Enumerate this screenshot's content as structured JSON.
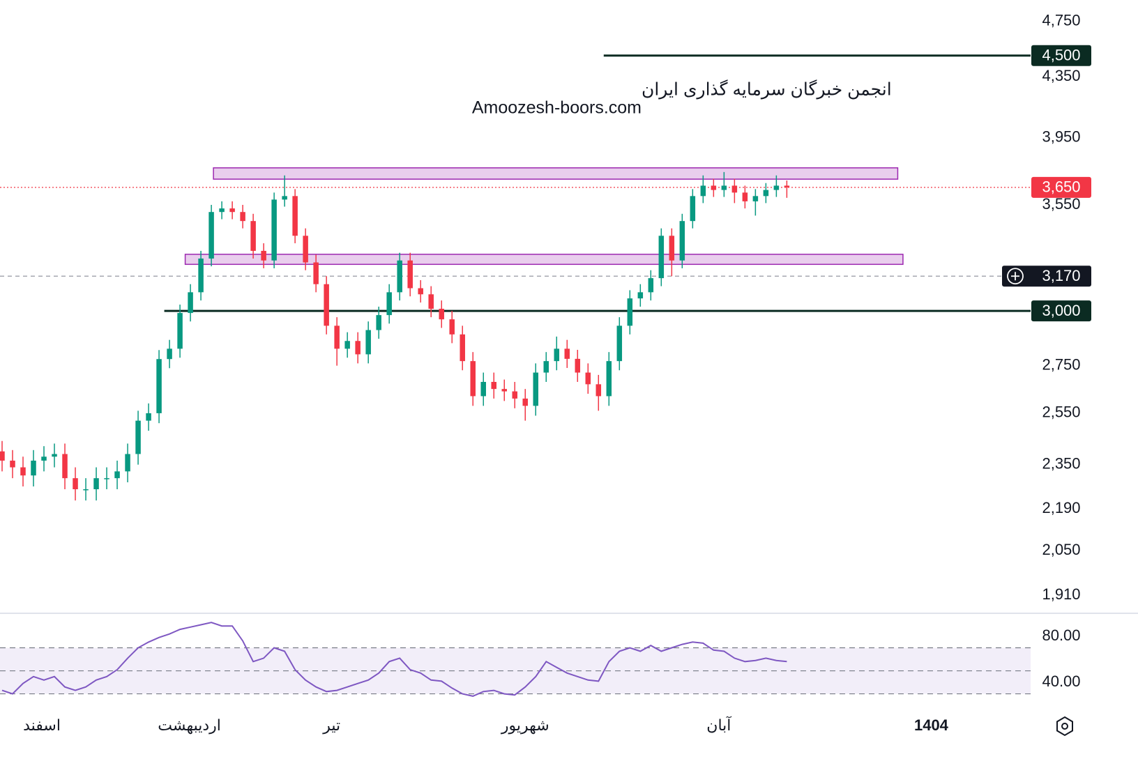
{
  "chart_data": {
    "type": "candlestick",
    "watermark": [
      "انجمن خبرگان سرمایه گذاری ایران",
      "Amoozesh-boors.com"
    ],
    "log_scale": true,
    "up_color": "#089981",
    "down_color": "#f23645",
    "open": [
      2400,
      2365,
      2340,
      2310,
      2365,
      2380,
      2390,
      2300,
      2260,
      2260,
      2300,
      2300,
      2325,
      2390,
      2520,
      2550,
      2779,
      2825,
      2990,
      3090,
      3260,
      3510,
      3530,
      3510,
      3460,
      3300,
      3250,
      3580,
      3600,
      3380,
      3240,
      3130,
      2930,
      2825,
      2860,
      2800,
      2910,
      2980,
      3090,
      3250,
      3110,
      3080,
      3010,
      2960,
      2890,
      2770,
      2620,
      2680,
      2650,
      2640,
      2610,
      2580,
      2720,
      2770,
      2825,
      2780,
      2720,
      2670,
      2620,
      2770,
      2930,
      3060,
      3090,
      3160,
      3380,
      3250,
      3460,
      3600,
      3660,
      3635,
      3660,
      3620,
      3570,
      3600,
      3635,
      3660
    ],
    "high": [
      2440,
      2405,
      2380,
      2405,
      2420,
      2430,
      2430,
      2340,
      2300,
      2340,
      2340,
      2365,
      2430,
      2560,
      2590,
      2819,
      2865,
      3030,
      3130,
      3300,
      3550,
      3570,
      3570,
      3550,
      3500,
      3340,
      3620,
      3720,
      3640,
      3420,
      3280,
      3170,
      2970,
      2900,
      2900,
      2950,
      3020,
      3130,
      3290,
      3290,
      3150,
      3120,
      3050,
      3000,
      2930,
      2810,
      2720,
      2720,
      2690,
      2680,
      2650,
      2760,
      2810,
      2880,
      2865,
      2820,
      2760,
      2710,
      2810,
      2970,
      3100,
      3130,
      3200,
      3420,
      3420,
      3500,
      3640,
      3720,
      3700,
      3740,
      3700,
      3660,
      3640,
      3675,
      3720,
      3690
    ],
    "low": [
      2325,
      2300,
      2270,
      2270,
      2325,
      2340,
      2260,
      2220,
      2220,
      2220,
      2260,
      2260,
      2285,
      2350,
      2480,
      2510,
      2739,
      2785,
      2950,
      3050,
      3220,
      3470,
      3470,
      3420,
      3260,
      3210,
      3210,
      3540,
      3340,
      3200,
      3090,
      2890,
      2750,
      2785,
      2760,
      2760,
      2870,
      2940,
      3050,
      3070,
      3040,
      2970,
      2920,
      2850,
      2730,
      2580,
      2580,
      2610,
      2600,
      2570,
      2520,
      2540,
      2680,
      2730,
      2740,
      2680,
      2630,
      2560,
      2580,
      2730,
      2890,
      3020,
      3050,
      3120,
      3170,
      3210,
      3420,
      3560,
      3595,
      3595,
      3560,
      3530,
      3490,
      3560,
      3595,
      3590
    ],
    "close": [
      2365,
      2340,
      2310,
      2365,
      2380,
      2390,
      2300,
      2260,
      2260,
      2300,
      2300,
      2325,
      2390,
      2520,
      2550,
      2779,
      2825,
      2990,
      3090,
      3260,
      3510,
      3530,
      3510,
      3460,
      3300,
      3250,
      3580,
      3600,
      3380,
      3240,
      3130,
      2930,
      2825,
      2860,
      2800,
      2910,
      2980,
      3090,
      3250,
      3110,
      3080,
      3010,
      2960,
      2890,
      2770,
      2620,
      2680,
      2650,
      2640,
      2610,
      2580,
      2720,
      2770,
      2825,
      2780,
      2720,
      2670,
      2620,
      2770,
      2930,
      3060,
      3090,
      3160,
      3380,
      3250,
      3460,
      3600,
      3660,
      3635,
      3660,
      3620,
      3570,
      3600,
      3635,
      3660,
      3650
    ],
    "xlim": [
      -0.2,
      98.3
    ],
    "xticks": [
      {
        "value": 3.8,
        "label": "اسفند"
      },
      {
        "value": 17.9,
        "label": "اردیبهشت"
      },
      {
        "value": 31.5,
        "label": "تیر"
      },
      {
        "value": 50,
        "label": "شهریور"
      },
      {
        "value": 68.5,
        "label": "آبان"
      },
      {
        "value": 88.8,
        "label": "1404"
      }
    ],
    "ylim": [
      1860,
      4915
    ],
    "yticks": [
      {
        "value": 4750,
        "label": "4,750"
      },
      {
        "value": 4350,
        "label": "4,350"
      },
      {
        "value": 3950,
        "label": "3,950"
      },
      {
        "value": 3550,
        "label": "3,550"
      },
      {
        "value": 2750,
        "label": "2,750"
      },
      {
        "value": 2550,
        "label": "2,550"
      },
      {
        "value": 2350,
        "label": "2,350"
      },
      {
        "value": 2190,
        "label": "2,190"
      },
      {
        "value": 2050,
        "label": "2,050"
      },
      {
        "value": 1910,
        "label": "1,910"
      }
    ],
    "levels": [
      {
        "value": 4500,
        "label": "4,500",
        "from": 57.5
      },
      {
        "value": 3000,
        "label": "3,000",
        "from": 15.5
      }
    ],
    "crosshair_price": {
      "value": 3170,
      "label": "3,170"
    },
    "current_price": {
      "value": 3650,
      "label": "3,650"
    },
    "zones": [
      {
        "top": 3765,
        "bottom": 3698,
        "from": 20.2,
        "to": 85.6
      },
      {
        "top": 3282,
        "bottom": 3230,
        "from": 17.5,
        "to": 86.1
      }
    ],
    "rsi": {
      "color": "#7e57c2",
      "ylim": [
        15.2,
        100
      ],
      "yticks": [
        {
          "value": 80,
          "label": "80.00"
        },
        {
          "value": 40,
          "label": "40.00"
        }
      ],
      "band": [
        30,
        70
      ],
      "middle": 50,
      "values": [
        33,
        30,
        39,
        45,
        42,
        45,
        36,
        33,
        36,
        42,
        45,
        51,
        61,
        70,
        75,
        79,
        82,
        86,
        88,
        90,
        92,
        89,
        89,
        76,
        58,
        61,
        70,
        67,
        51,
        42,
        36,
        32,
        33,
        36,
        39,
        42,
        48,
        58,
        61,
        51,
        48,
        42,
        41,
        35,
        30,
        28,
        32,
        33,
        30,
        29,
        36,
        45,
        58,
        53,
        48,
        45,
        42,
        41,
        58,
        67,
        70,
        67,
        72,
        67,
        70,
        73,
        75,
        74,
        68,
        67,
        61,
        58,
        59,
        61,
        59,
        58
      ]
    }
  }
}
